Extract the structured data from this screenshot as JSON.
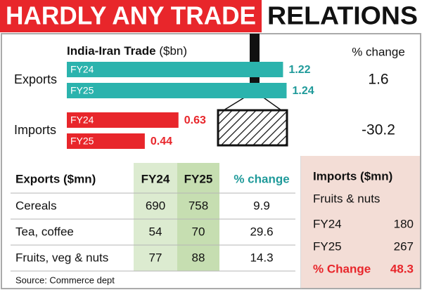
{
  "header": {
    "title_highlight": "HARDLY ANY TRADE",
    "title_rest": "RELATIONS"
  },
  "chart_data": {
    "type": "bar",
    "orientation": "horizontal",
    "title": "India-Iran Trade",
    "unit": "($bn)",
    "change_header": "% change",
    "groups": [
      {
        "name": "Exports",
        "color": "#2bb3ad",
        "label_color": "#1f9a9a",
        "categories": [
          "FY24",
          "FY25"
        ],
        "values": [
          1.22,
          1.24
        ],
        "change": 1.6
      },
      {
        "name": "Imports",
        "color": "#e8262b",
        "label_color": "#e8262b",
        "categories": [
          "FY24",
          "FY25"
        ],
        "values": [
          0.63,
          0.44
        ],
        "change": -30.2
      }
    ]
  },
  "exports_table": {
    "header": [
      "Exports ($mn)",
      "FY24",
      "FY25",
      "% change"
    ],
    "rows": [
      [
        "Cereals",
        "690",
        "758",
        "9.9"
      ],
      [
        "Tea, coffee",
        "54",
        "70",
        "29.6"
      ],
      [
        "Fruits, veg & nuts",
        "77",
        "88",
        "14.3"
      ]
    ]
  },
  "source": "Source: Commerce dept",
  "imports_box": {
    "title": "Imports ($mn)",
    "subtitle": "Fruits & nuts",
    "rows": [
      [
        "FY24",
        "180"
      ],
      [
        "FY25",
        "267"
      ],
      [
        "% Change",
        "48.3"
      ]
    ]
  }
}
